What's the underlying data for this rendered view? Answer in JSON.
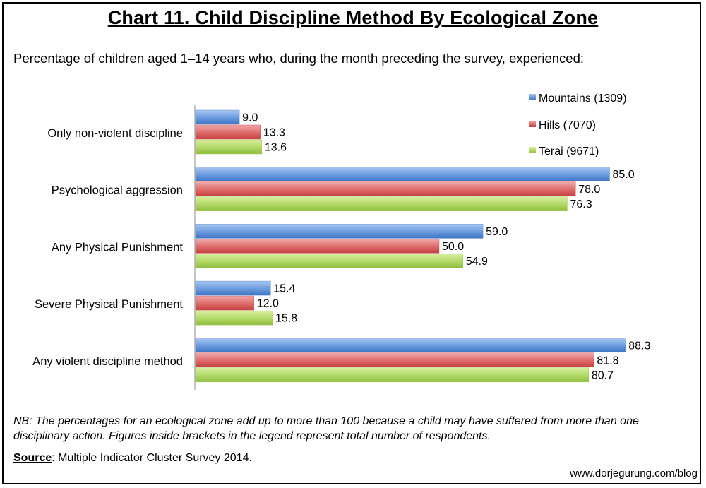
{
  "title": "Chart 11. Child Discipline Method By Ecological Zone",
  "subtitle": "Percentage of children aged 1–14 years who, during the month preceding the survey, experienced:",
  "note": "NB: The percentages for an ecological zone add up to more than 100 because a child may have suffered from more than one disciplinary action. Figures inside brackets in the legend represent total number of respondents.",
  "source": {
    "label": "Source",
    "text": ": Multiple Indicator Cluster Survey 2014."
  },
  "credit": "www.dorjegurung.com/blog",
  "chart_data": {
    "type": "bar",
    "orientation": "horizontal",
    "categories": [
      "Only non-violent discipline",
      "Psychological aggression",
      "Any Physical Punishment",
      "Severe Physical Punishment",
      "Any violent discipline method"
    ],
    "series": [
      {
        "name": "Mountains (1309)",
        "values": [
          9.0,
          85.0,
          59.0,
          15.4,
          88.3
        ],
        "color": "#5b8fd6"
      },
      {
        "name": "Hills (7070)",
        "values": [
          13.3,
          78.0,
          50.0,
          12.0,
          81.8
        ],
        "color": "#d65b5b"
      },
      {
        "name": "Terai (9671)",
        "values": [
          13.6,
          76.3,
          54.9,
          15.8,
          80.7
        ],
        "color": "#a6cc55"
      }
    ],
    "xlim": [
      0,
      100
    ],
    "grid": false,
    "legend_position": "top-right",
    "data_labels": true
  }
}
